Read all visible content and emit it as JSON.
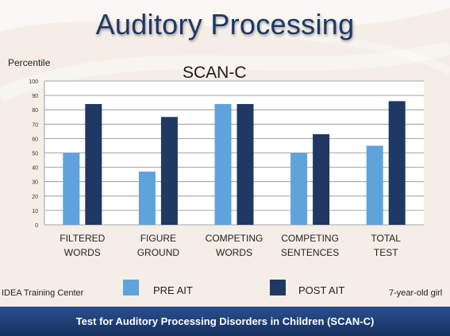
{
  "slide": {
    "title": "Auditory Processing",
    "footer_left": "IDEA Training Center",
    "footer_right": "7-year-old girl",
    "bottom_bar": "Test for Auditory Processing Disorders in Children (SCAN-C)"
  },
  "chart_data": {
    "type": "bar",
    "title": "SCAN-C",
    "ylabel": "Percentile",
    "xlabel": "",
    "ylim": [
      0,
      100
    ],
    "yticks": [
      0,
      10,
      20,
      30,
      40,
      50,
      60,
      70,
      80,
      90,
      100
    ],
    "grid": true,
    "legend_position": "bottom",
    "categories": [
      [
        "FILTERED",
        "WORDS"
      ],
      [
        "FIGURE",
        "GROUND"
      ],
      [
        "COMPETING",
        "WORDS"
      ],
      [
        "COMPETING",
        "SENTENCES"
      ],
      [
        "TOTAL",
        "TEST"
      ]
    ],
    "series": [
      {
        "name": "PRE AIT",
        "color": "#5fa3dc",
        "values": [
          50,
          37,
          84,
          50,
          55
        ]
      },
      {
        "name": "POST AIT",
        "color": "#1f3864",
        "values": [
          84,
          75,
          84,
          63,
          86
        ]
      }
    ]
  }
}
